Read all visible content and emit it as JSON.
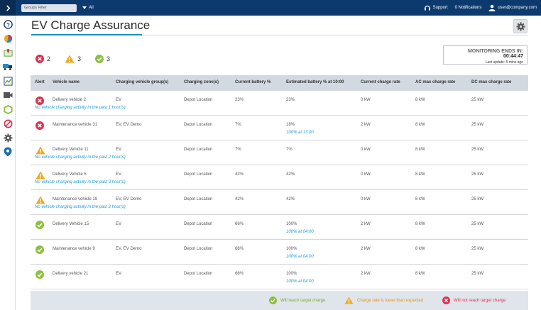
{
  "topbar": {
    "groups_filter": "Groups Filter",
    "filter_value": "All",
    "support": "Support",
    "notifications": "0 Notifications",
    "user": "user@company.com"
  },
  "page": {
    "title": "EV Charge Assurance"
  },
  "summary": {
    "red_count": "2",
    "amber_count": "3",
    "green_count": "3"
  },
  "monitoring": {
    "label": "MONITORING ENDS IN:",
    "time": "00:44:47",
    "last_update": "Last update: 5 mins ago"
  },
  "table": {
    "headers": [
      "Alert",
      "Vehicle name",
      "Charging vehicle group(s)",
      "Charging zone(s)",
      "Current battery %",
      "Estimated battery % at 10:00",
      "Current charge rate",
      "AC max charge rate",
      "DC max charge rate"
    ],
    "rows": [
      {
        "status": "red",
        "name": "Delivery vehicle 2",
        "group": "EV",
        "zone": "Depot Location",
        "battery": "23%",
        "estimated": "23%",
        "estimated_sub": "",
        "rate": "0 kW",
        "ac": "8 kW",
        "dc": "25 kW",
        "note": "No vehicle charging activity in the past 1 hour(s)"
      },
      {
        "status": "red",
        "name": "Maintenance vehicle 31",
        "group": "EV, EV Demo",
        "zone": "Depot Location",
        "battery": "7%",
        "estimated": "18%",
        "estimated_sub": "100% at 13:00",
        "rate": "2 kW",
        "ac": "8 kW",
        "dc": "25 kW",
        "note": ""
      },
      {
        "status": "amber",
        "name": "Delivery Vehicle 11",
        "group": "EV",
        "zone": "Depot Location",
        "battery": "7%",
        "estimated": "7%",
        "estimated_sub": "",
        "rate": "0 kW",
        "ac": "8 kW",
        "dc": "25 kW",
        "note": "No vehicle charging activity in the past 2 hour(s)"
      },
      {
        "status": "amber",
        "name": "Delivery Vehicle 6",
        "group": "EV",
        "zone": "Depot Location",
        "battery": "42%",
        "estimated": "42%",
        "estimated_sub": "",
        "rate": "0 kW",
        "ac": "8 kW",
        "dc": "25 kW",
        "note": "No vehicle charging activity in the past 3 hour(s)"
      },
      {
        "status": "amber",
        "name": "Maintenance vehicle 19",
        "group": "EV, EV Demo",
        "zone": "Depot Location",
        "battery": "42%",
        "estimated": "42%",
        "estimated_sub": "",
        "rate": "0 kW",
        "ac": "8 kW",
        "dc": "25 kW",
        "note": "No vehicle charging activity in the past 2 hour(s)"
      },
      {
        "status": "green",
        "name": "Delivery Vehicle 15",
        "group": "EV",
        "zone": "Depot Location",
        "battery": "66%",
        "estimated": "100%",
        "estimated_sub": "100% at 04:00",
        "rate": "2 kW",
        "ac": "8 kW",
        "dc": "25 kW",
        "note": ""
      },
      {
        "status": "green",
        "name": "Maintenance vehicle 9",
        "group": "EV, EV Demo",
        "zone": "Depot Location",
        "battery": "66%",
        "estimated": "100%",
        "estimated_sub": "100% at 04:00",
        "rate": "2 kW",
        "ac": "8 kW",
        "dc": "25 kW",
        "note": ""
      },
      {
        "status": "green",
        "name": "Delivery vehicle 21",
        "group": "EV",
        "zone": "Depot Location",
        "battery": "66%",
        "estimated": "100%",
        "estimated_sub": "100% at 04:00",
        "rate": "2 kW",
        "ac": "8 kW",
        "dc": "25 kW",
        "note": ""
      }
    ]
  },
  "legend": {
    "green": "Will reach target charge",
    "amber": "Charge rate is lower than expected",
    "red": "Will not reach target charge"
  },
  "colors": {
    "red": "#d9344f",
    "amber": "#f2a81d",
    "green": "#8cc03f",
    "accent": "#1a90c8",
    "topbar": "#0d3a6e"
  },
  "sidebar_icons": [
    "help-icon",
    "pie-chart-icon",
    "map-icon",
    "truck-icon",
    "trend-chart-icon",
    "camera-icon",
    "puzzle-icon",
    "block-icon",
    "gear-icon",
    "location-pin-icon"
  ]
}
